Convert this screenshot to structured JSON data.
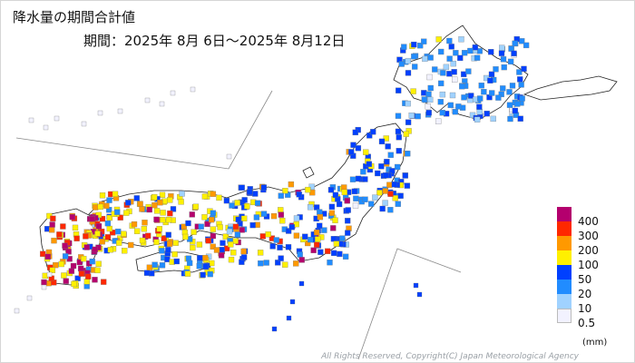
{
  "title": "降水量の期間合計値",
  "period": "期間：2025年 8月 6日～2025年 8月12日",
  "legend": {
    "unit": "(mm)",
    "items": [
      {
        "label": "400",
        "color": "#b4006e"
      },
      {
        "label": "300",
        "color": "#ff2800"
      },
      {
        "label": "200",
        "color": "#ff9900"
      },
      {
        "label": "100",
        "color": "#fff000"
      },
      {
        "label": "50",
        "color": "#0040ff"
      },
      {
        "label": "20",
        "color": "#218cff"
      },
      {
        "label": "10",
        "color": "#a0d2ff"
      },
      {
        "label": "0.5",
        "color": "#f2f2ff"
      }
    ]
  },
  "copyright": "All Rights Reserved, Copyright(C) Japan Meteorological Agency",
  "colors": {
    "land_outline": "#222222",
    "inset_line": "#888888",
    "station_border": "#777777"
  }
}
